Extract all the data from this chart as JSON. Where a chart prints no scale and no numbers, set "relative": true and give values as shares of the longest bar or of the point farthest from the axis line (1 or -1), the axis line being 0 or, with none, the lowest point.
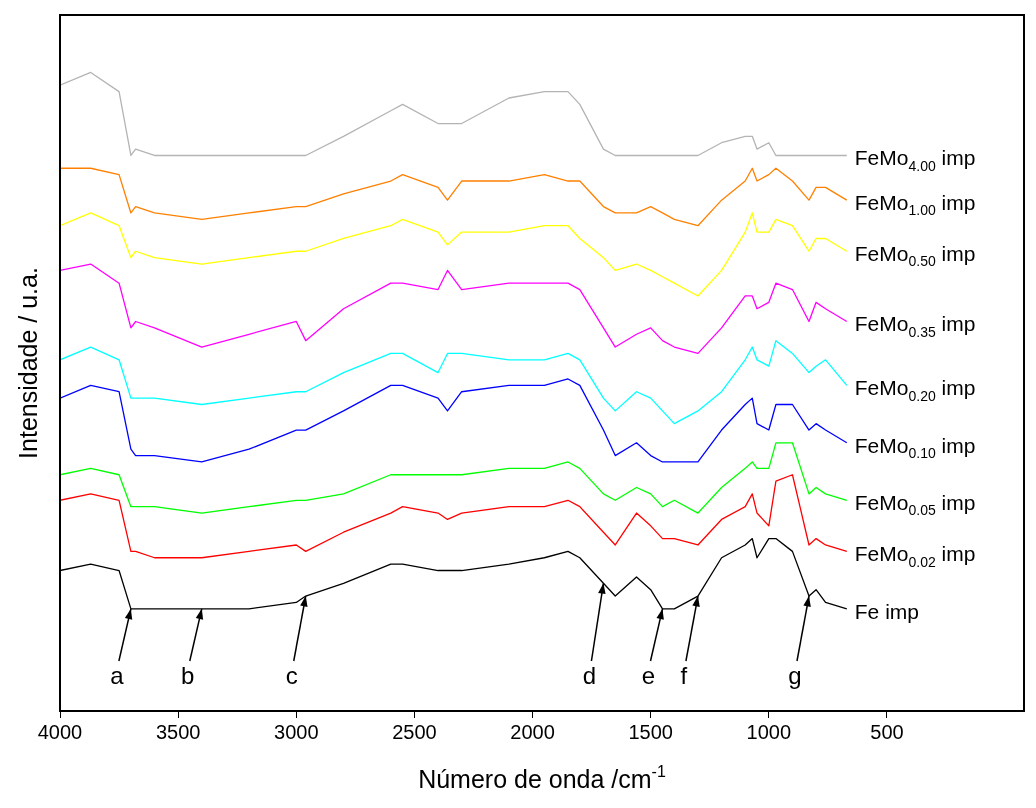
{
  "chart_data": {
    "type": "line",
    "xlabel": "Número de onda /cm$^{-1}$",
    "ylabel": "Intensidade / u.a.",
    "relative": true,
    "marker": "none",
    "grid": false,
    "xlim": [
      4000,
      -80
    ],
    "xticks": [
      4000,
      3500,
      3000,
      2500,
      2000,
      1500,
      1000,
      500
    ],
    "x": [
      4000,
      3870,
      3750,
      3700,
      3680,
      3600,
      3400,
      3200,
      3000,
      2960,
      2800,
      2600,
      2550,
      2400,
      2360,
      2300,
      2100,
      1950,
      1850,
      1800,
      1700,
      1650,
      1560,
      1500,
      1450,
      1400,
      1300,
      1200,
      1100,
      1070,
      1050,
      1000,
      970,
      900,
      830,
      800,
      760,
      670
    ],
    "series": [
      {
        "name": "FeMo$_{4.00}$ imp",
        "color": "#b4b4b4",
        "values": [
          0.98,
          1.0,
          0.97,
          0.87,
          0.88,
          0.87,
          0.87,
          0.87,
          0.87,
          0.87,
          0.9,
          0.94,
          0.95,
          0.92,
          0.92,
          0.92,
          0.96,
          0.97,
          0.97,
          0.95,
          0.88,
          0.87,
          0.87,
          0.87,
          0.87,
          0.87,
          0.87,
          0.89,
          0.9,
          0.9,
          0.88,
          0.89,
          0.87,
          0.87,
          0.87,
          0.87,
          0.87,
          0.87
        ]
      },
      {
        "name": "FeMo$_{1.00}$ imp",
        "color": "#ff8000",
        "values": [
          0.85,
          0.85,
          0.84,
          0.78,
          0.79,
          0.78,
          0.77,
          0.78,
          0.79,
          0.79,
          0.81,
          0.83,
          0.84,
          0.82,
          0.8,
          0.83,
          0.83,
          0.84,
          0.83,
          0.83,
          0.79,
          0.78,
          0.78,
          0.79,
          0.78,
          0.77,
          0.76,
          0.8,
          0.83,
          0.85,
          0.83,
          0.84,
          0.85,
          0.83,
          0.8,
          0.82,
          0.82,
          0.8
        ]
      },
      {
        "name": "FeMo$_{0.50}$ imp",
        "color": "#ffff00",
        "values": [
          0.76,
          0.78,
          0.76,
          0.71,
          0.72,
          0.71,
          0.7,
          0.71,
          0.72,
          0.72,
          0.74,
          0.76,
          0.77,
          0.75,
          0.73,
          0.75,
          0.75,
          0.76,
          0.76,
          0.74,
          0.71,
          0.69,
          0.7,
          0.69,
          0.68,
          0.67,
          0.65,
          0.69,
          0.75,
          0.78,
          0.75,
          0.75,
          0.77,
          0.76,
          0.72,
          0.74,
          0.74,
          0.72
        ]
      },
      {
        "name": "FeMo$_{0.35}$ imp",
        "color": "#ff00ff",
        "values": [
          0.69,
          0.7,
          0.67,
          0.6,
          0.61,
          0.6,
          0.57,
          0.59,
          0.61,
          0.58,
          0.63,
          0.67,
          0.67,
          0.66,
          0.69,
          0.66,
          0.67,
          0.67,
          0.67,
          0.66,
          0.6,
          0.57,
          0.59,
          0.6,
          0.58,
          0.57,
          0.56,
          0.6,
          0.65,
          0.65,
          0.63,
          0.64,
          0.67,
          0.66,
          0.61,
          0.64,
          0.63,
          0.61
        ]
      },
      {
        "name": "FeMo$_{0.20}$ imp",
        "color": "#00ffff",
        "values": [
          0.55,
          0.57,
          0.55,
          0.49,
          0.49,
          0.49,
          0.48,
          0.49,
          0.5,
          0.5,
          0.53,
          0.56,
          0.56,
          0.53,
          0.56,
          0.56,
          0.55,
          0.55,
          0.56,
          0.55,
          0.49,
          0.47,
          0.5,
          0.49,
          0.47,
          0.45,
          0.47,
          0.5,
          0.55,
          0.57,
          0.55,
          0.54,
          0.58,
          0.56,
          0.53,
          0.54,
          0.55,
          0.51
        ]
      },
      {
        "name": "FeMo$_{0.10}$ imp",
        "color": "#0000ff",
        "values": [
          0.49,
          0.51,
          0.5,
          0.41,
          0.4,
          0.4,
          0.39,
          0.41,
          0.44,
          0.44,
          0.47,
          0.51,
          0.51,
          0.49,
          0.47,
          0.5,
          0.51,
          0.51,
          0.52,
          0.51,
          0.44,
          0.4,
          0.42,
          0.4,
          0.39,
          0.39,
          0.39,
          0.44,
          0.48,
          0.49,
          0.45,
          0.44,
          0.48,
          0.48,
          0.44,
          0.45,
          0.44,
          0.42
        ]
      },
      {
        "name": "FeMo$_{0.05}$ imp",
        "color": "#00ff00",
        "values": [
          0.37,
          0.38,
          0.37,
          0.32,
          0.32,
          0.32,
          0.31,
          0.32,
          0.33,
          0.33,
          0.34,
          0.37,
          0.37,
          0.37,
          0.37,
          0.37,
          0.38,
          0.38,
          0.39,
          0.38,
          0.34,
          0.33,
          0.35,
          0.34,
          0.32,
          0.33,
          0.31,
          0.35,
          0.38,
          0.39,
          0.38,
          0.38,
          0.42,
          0.42,
          0.34,
          0.35,
          0.34,
          0.33
        ]
      },
      {
        "name": "FeMo$_{0.02}$ imp",
        "color": "#ff0000",
        "values": [
          0.33,
          0.34,
          0.33,
          0.25,
          0.25,
          0.24,
          0.24,
          0.25,
          0.26,
          0.25,
          0.28,
          0.31,
          0.32,
          0.31,
          0.3,
          0.31,
          0.32,
          0.32,
          0.33,
          0.32,
          0.28,
          0.26,
          0.31,
          0.29,
          0.27,
          0.27,
          0.26,
          0.3,
          0.32,
          0.34,
          0.31,
          0.29,
          0.36,
          0.37,
          0.26,
          0.27,
          0.26,
          0.25
        ]
      },
      {
        "name": "Fe imp",
        "color": "#000000",
        "values": [
          0.22,
          0.23,
          0.22,
          0.16,
          0.16,
          0.16,
          0.16,
          0.16,
          0.17,
          0.18,
          0.2,
          0.23,
          0.23,
          0.22,
          0.22,
          0.22,
          0.23,
          0.24,
          0.25,
          0.24,
          0.2,
          0.18,
          0.21,
          0.19,
          0.16,
          0.16,
          0.18,
          0.24,
          0.26,
          0.27,
          0.24,
          0.27,
          0.27,
          0.25,
          0.18,
          0.19,
          0.17,
          0.16
        ]
      }
    ],
    "annotations": [
      {
        "text": "a",
        "x": 3700,
        "y": 0.16
      },
      {
        "text": "b",
        "x": 3400,
        "y": 0.16
      },
      {
        "text": "c",
        "x": 2960,
        "y": 0.18
      },
      {
        "text": "d",
        "x": 1700,
        "y": 0.2
      },
      {
        "text": "e",
        "x": 1450,
        "y": 0.16
      },
      {
        "text": "f",
        "x": 1300,
        "y": 0.18
      },
      {
        "text": "g",
        "x": 830,
        "y": 0.18
      }
    ]
  }
}
